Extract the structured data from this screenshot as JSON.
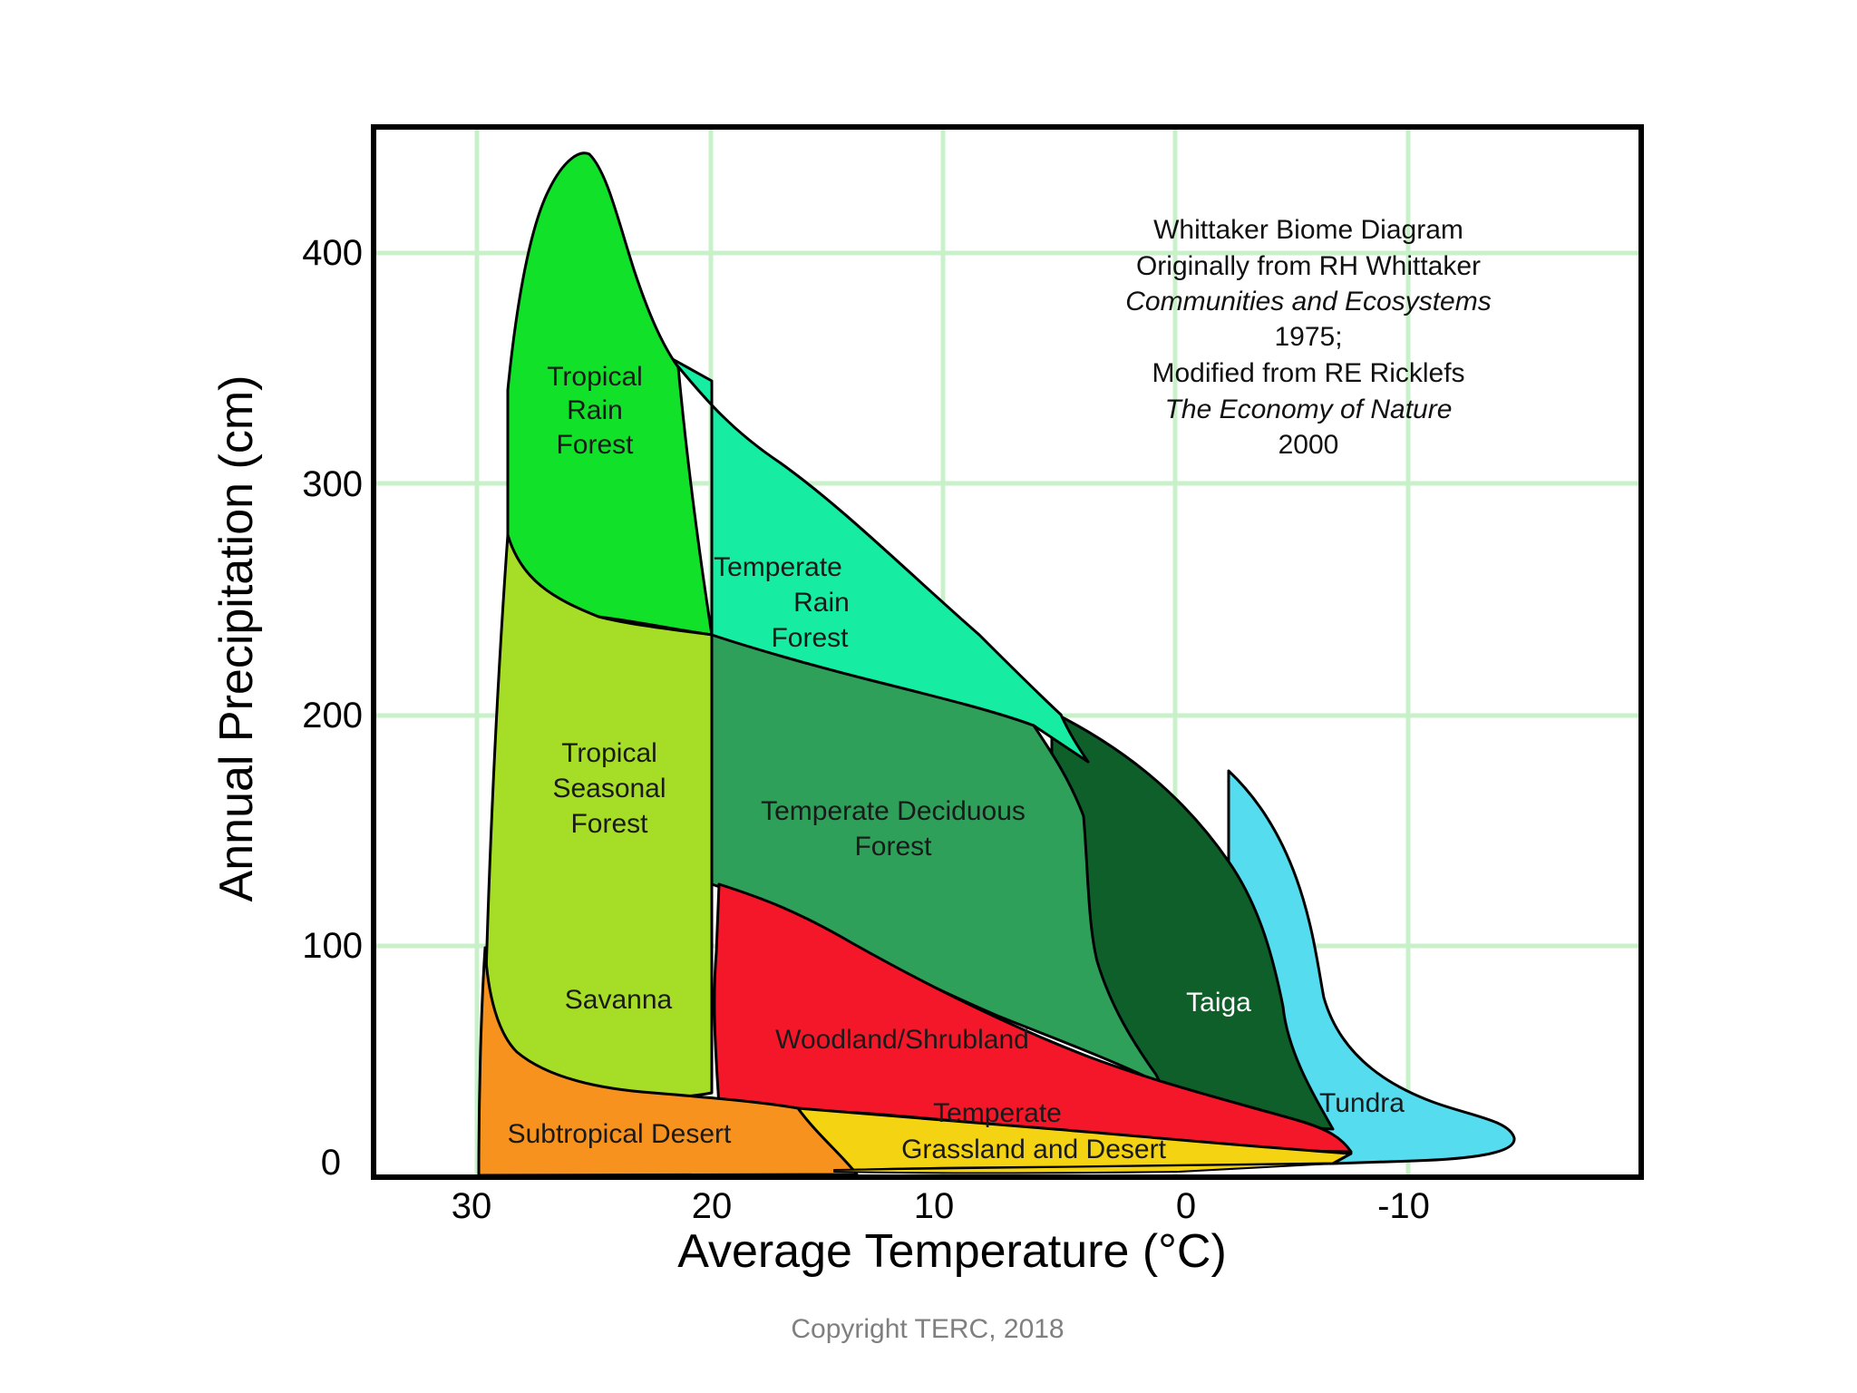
{
  "diagram": {
    "x_axis": {
      "label": "Average Temperature (°C)",
      "ticks": [
        "30",
        "20",
        "10",
        "0",
        "-10"
      ]
    },
    "y_axis": {
      "label": "Annual Precipitation (cm)",
      "ticks": [
        "0",
        "100",
        "200",
        "300",
        "400"
      ]
    },
    "credit": {
      "line1": "Whittaker Biome Diagram",
      "line2": "Originally from RH Whittaker",
      "line3": "Communities and Ecosystems",
      "line4": "1975;",
      "line5": "Modified from RE Ricklefs",
      "line6": "The Economy of Nature",
      "line7": "2000"
    },
    "biomes": {
      "tropical_rain_forest": {
        "l1": "Tropical",
        "l2": "Rain",
        "l3": "Forest",
        "color": "#12e12a"
      },
      "temperate_rain_forest": {
        "l1": "Temperate",
        "l2": "Rain",
        "l3": "Forest",
        "color": "#16eda2"
      },
      "tropical_seasonal_forest": {
        "l1": "Tropical",
        "l2": "Seasonal",
        "l3": "Forest",
        "color": "#a6dd26"
      },
      "temperate_deciduous_forest": {
        "l1": "Temperate Deciduous",
        "l2": "Forest",
        "color": "#2ea05a"
      },
      "taiga": {
        "l1": "Taiga",
        "color": "#0e5f29"
      },
      "savanna": {
        "l1": "Savanna",
        "color": "#a6dd26"
      },
      "woodland_shrubland": {
        "l1": "Woodland/Shrubland",
        "color": "#f41729"
      },
      "temperate_grassland_desert": {
        "l1": "Temperate",
        "l2": "Grassland and Desert",
        "color": "#f3d312"
      },
      "subtropical_desert": {
        "l1": "Subtropical Desert",
        "color": "#f7921e"
      },
      "tundra": {
        "l1": "Tundra",
        "color": "#56dcef"
      }
    }
  },
  "footer": {
    "copyright": "Copyright TERC, 2018"
  }
}
